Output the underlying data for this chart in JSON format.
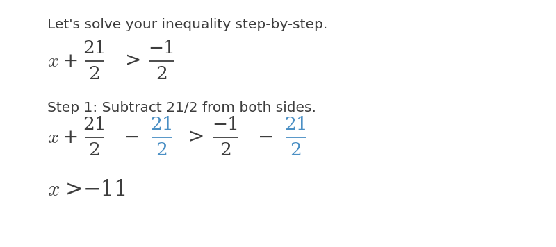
{
  "background_color": "#ffffff",
  "text_color": "#3d3d3d",
  "blue_color": "#4a8fc4",
  "line1": "Let's solve your inequality step-by-step.",
  "step_label": "Step 1: Subtract 21/2 from both sides.",
  "fig_width": 8.0,
  "fig_height": 3.56,
  "dpi": 100
}
